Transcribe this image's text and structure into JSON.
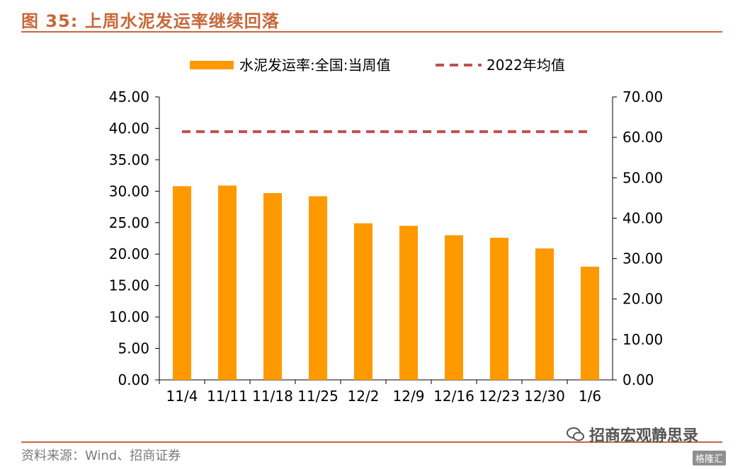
{
  "figure": {
    "title": "图 35:  上周水泥发运率继续回落",
    "source": "资料来源：Wind、招商证券",
    "watermark": "招商宏观静思录",
    "badge": "格隆汇"
  },
  "colors": {
    "bar": "#FF9900",
    "avg_line": "#C0504D",
    "title": "#C8673A"
  },
  "chart_data": {
    "type": "bar",
    "categories": [
      "11/4",
      "11/11",
      "11/18",
      "11/25",
      "12/2",
      "12/9",
      "12/16",
      "12/23",
      "12/30",
      "1/6"
    ],
    "series": [
      {
        "name": "水泥发运率:全国:当周值",
        "type": "bar",
        "axis": "left",
        "values": [
          30.8,
          30.9,
          29.7,
          29.2,
          24.9,
          24.5,
          23.0,
          22.6,
          20.9,
          18.0
        ]
      },
      {
        "name": "2022年均值",
        "type": "line",
        "style": "dashed",
        "axis": "right",
        "values": [
          61.4,
          61.4,
          61.4,
          61.4,
          61.4,
          61.4,
          61.4,
          61.4,
          61.4,
          61.4
        ]
      }
    ],
    "y_left": {
      "min": 0,
      "max": 45,
      "step": 5,
      "ticks": [
        "0.00",
        "5.00",
        "10.00",
        "15.00",
        "20.00",
        "25.00",
        "30.00",
        "35.00",
        "40.00",
        "45.00"
      ]
    },
    "y_right": {
      "min": 0,
      "max": 70,
      "step": 10,
      "ticks": [
        "0.00",
        "10.00",
        "20.00",
        "30.00",
        "40.00",
        "50.00",
        "60.00",
        "70.00"
      ]
    },
    "legend_position": "top-center",
    "grid": false
  }
}
